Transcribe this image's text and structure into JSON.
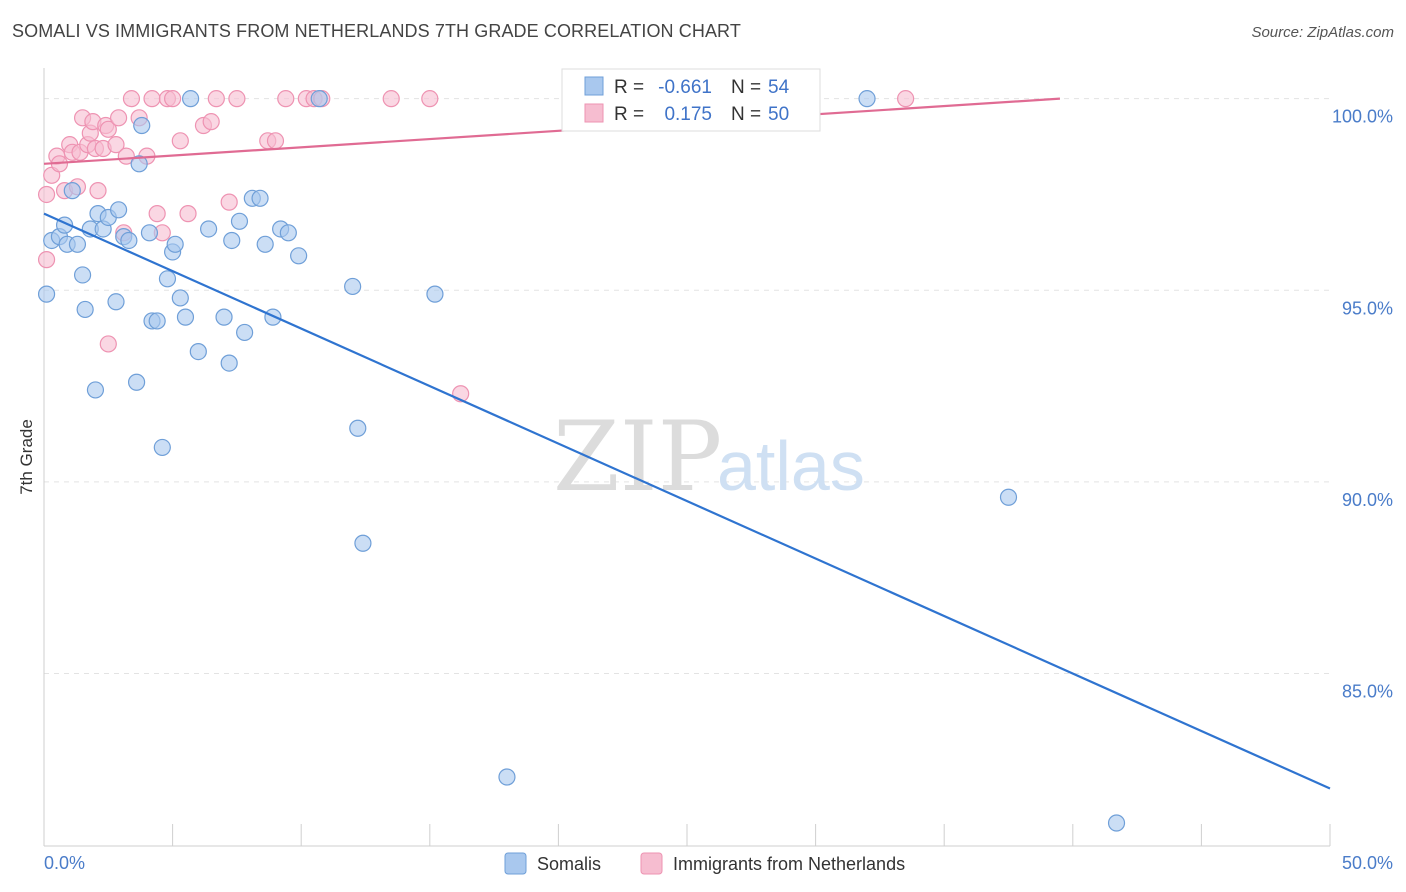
{
  "title": "SOMALI VS IMMIGRANTS FROM NETHERLANDS 7TH GRADE CORRELATION CHART",
  "source": "Source: ZipAtlas.com",
  "watermark": {
    "zip": "ZIP",
    "atlas": "atlas"
  },
  "colors": {
    "somali_fill": "#a9c8ee",
    "somali_stroke": "#6f9fd8",
    "somali_line": "#2f74d0",
    "neth_fill": "#f6bdd0",
    "neth_stroke": "#ee93b2",
    "neth_line": "#e06b93",
    "grid": "#e3e3e3",
    "tick_label": "#4a7cc9"
  },
  "stats_box": {
    "rows": [
      {
        "r_label": "R =",
        "r_value": "-0.661",
        "n_label": "N =",
        "n_value": "54"
      },
      {
        "r_label": "R =",
        "r_value": "0.175",
        "n_label": "N =",
        "n_value": "50"
      }
    ]
  },
  "chart_data": {
    "type": "scatter",
    "xlabel": "",
    "ylabel": "7th Grade",
    "xlim": [
      0,
      50
    ],
    "ylim": [
      80.5,
      100.8
    ],
    "x_tick_labels": [
      {
        "x": 0,
        "label": "0.0%"
      },
      {
        "x": 50,
        "label": "50.0%"
      }
    ],
    "y_ticks": [
      {
        "y": 100,
        "label": "100.0%"
      },
      {
        "y": 95,
        "label": "95.0%"
      },
      {
        "y": 90,
        "label": "90.0%"
      },
      {
        "y": 85,
        "label": "85.0%"
      }
    ],
    "legend": [
      "Somalis",
      "Immigrants from Netherlands"
    ],
    "series": [
      {
        "name": "Somalis",
        "trend": {
          "x": [
            0,
            50
          ],
          "y": [
            97.0,
            82.0
          ]
        },
        "points": [
          [
            0.1,
            94.9
          ],
          [
            0.3,
            96.3
          ],
          [
            0.6,
            96.4
          ],
          [
            0.8,
            96.7
          ],
          [
            0.9,
            96.2
          ],
          [
            1.1,
            97.6
          ],
          [
            1.3,
            96.2
          ],
          [
            1.5,
            95.4
          ],
          [
            1.6,
            94.5
          ],
          [
            1.8,
            96.6
          ],
          [
            2.0,
            92.4
          ],
          [
            2.1,
            97.0
          ],
          [
            2.3,
            96.6
          ],
          [
            2.5,
            96.9
          ],
          [
            2.8,
            94.7
          ],
          [
            2.9,
            97.1
          ],
          [
            3.1,
            96.4
          ],
          [
            3.3,
            96.3
          ],
          [
            3.6,
            92.6
          ],
          [
            3.7,
            98.3
          ],
          [
            3.8,
            99.3
          ],
          [
            4.1,
            96.5
          ],
          [
            4.2,
            94.2
          ],
          [
            4.4,
            94.2
          ],
          [
            4.6,
            90.9
          ],
          [
            4.8,
            95.3
          ],
          [
            5.0,
            96.0
          ],
          [
            5.1,
            96.2
          ],
          [
            5.3,
            94.8
          ],
          [
            5.5,
            94.3
          ],
          [
            5.7,
            100.0
          ],
          [
            6.0,
            93.4
          ],
          [
            6.4,
            96.6
          ],
          [
            7.0,
            94.3
          ],
          [
            7.2,
            93.1
          ],
          [
            7.3,
            96.3
          ],
          [
            7.6,
            96.8
          ],
          [
            7.8,
            93.9
          ],
          [
            8.1,
            97.4
          ],
          [
            8.4,
            97.4
          ],
          [
            8.6,
            96.2
          ],
          [
            8.9,
            94.3
          ],
          [
            9.2,
            96.6
          ],
          [
            9.5,
            96.5
          ],
          [
            9.9,
            95.9
          ],
          [
            10.7,
            100.0
          ],
          [
            12.0,
            95.1
          ],
          [
            12.2,
            91.4
          ],
          [
            12.4,
            88.4
          ],
          [
            15.2,
            94.9
          ],
          [
            18.0,
            82.3
          ],
          [
            32.0,
            100.0
          ],
          [
            37.5,
            89.6
          ],
          [
            41.7,
            81.1
          ]
        ]
      },
      {
        "name": "Immigrants from Netherlands",
        "trend": {
          "x": [
            0,
            39.5
          ],
          "y": [
            98.3,
            100.0
          ]
        },
        "points": [
          [
            0.1,
            97.5
          ],
          [
            0.1,
            95.8
          ],
          [
            0.3,
            98.0
          ],
          [
            0.5,
            98.5
          ],
          [
            0.6,
            98.3
          ],
          [
            0.8,
            97.6
          ],
          [
            1.0,
            98.8
          ],
          [
            1.1,
            98.6
          ],
          [
            1.3,
            97.7
          ],
          [
            1.4,
            98.6
          ],
          [
            1.5,
            99.5
          ],
          [
            1.7,
            98.8
          ],
          [
            1.8,
            99.1
          ],
          [
            1.9,
            99.4
          ],
          [
            2.0,
            98.7
          ],
          [
            2.1,
            97.6
          ],
          [
            2.3,
            98.7
          ],
          [
            2.4,
            99.3
          ],
          [
            2.5,
            99.2
          ],
          [
            2.5,
            93.6
          ],
          [
            2.8,
            98.8
          ],
          [
            2.9,
            99.5
          ],
          [
            3.1,
            96.5
          ],
          [
            3.2,
            98.5
          ],
          [
            3.4,
            100.0
          ],
          [
            3.7,
            99.5
          ],
          [
            4.0,
            98.5
          ],
          [
            4.2,
            100.0
          ],
          [
            4.4,
            97.0
          ],
          [
            4.6,
            96.5
          ],
          [
            4.8,
            100.0
          ],
          [
            5.0,
            100.0
          ],
          [
            5.3,
            98.9
          ],
          [
            5.6,
            97.0
          ],
          [
            6.2,
            99.3
          ],
          [
            6.5,
            99.4
          ],
          [
            6.7,
            100.0
          ],
          [
            7.2,
            97.3
          ],
          [
            7.5,
            100.0
          ],
          [
            8.7,
            98.9
          ],
          [
            9.0,
            98.9
          ],
          [
            9.4,
            100.0
          ],
          [
            10.2,
            100.0
          ],
          [
            10.5,
            100.0
          ],
          [
            10.8,
            100.0
          ],
          [
            13.5,
            100.0
          ],
          [
            15.0,
            100.0
          ],
          [
            16.2,
            92.3
          ],
          [
            24.2,
            100.0
          ],
          [
            33.5,
            100.0
          ]
        ]
      }
    ]
  }
}
